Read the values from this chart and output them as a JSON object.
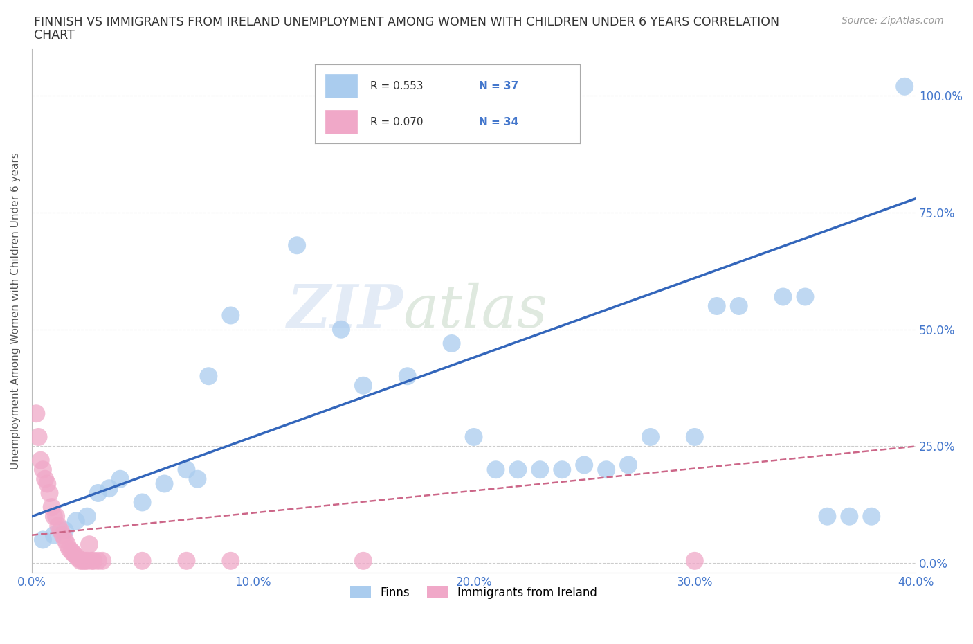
{
  "title_line1": "FINNISH VS IMMIGRANTS FROM IRELAND UNEMPLOYMENT AMONG WOMEN WITH CHILDREN UNDER 6 YEARS CORRELATION",
  "title_line2": "CHART",
  "source": "Source: ZipAtlas.com",
  "ylabel": "Unemployment Among Women with Children Under 6 years",
  "xlim": [
    0.0,
    0.4
  ],
  "ylim": [
    -0.02,
    1.1
  ],
  "xticks": [
    0.0,
    0.1,
    0.2,
    0.3,
    0.4
  ],
  "xtick_labels": [
    "0.0%",
    "10.0%",
    "20.0%",
    "30.0%",
    "40.0%"
  ],
  "yticks": [
    0.0,
    0.25,
    0.5,
    0.75,
    1.0
  ],
  "ytick_labels": [
    "0.0%",
    "25.0%",
    "50.0%",
    "75.0%",
    "100.0%"
  ],
  "background_color": "#ffffff",
  "grid_color": "#cccccc",
  "watermark_zip": "ZIP",
  "watermark_atlas": "atlas",
  "legend_R1": "R = 0.553",
  "legend_N1": "N = 37",
  "legend_R2": "R = 0.070",
  "legend_N2": "N = 34",
  "finns_color": "#aaccee",
  "ireland_color": "#f0a8c8",
  "trendline1_color": "#3366bb",
  "trendline2_color": "#cc6688",
  "finns_scatter": [
    [
      0.005,
      0.05
    ],
    [
      0.01,
      0.06
    ],
    [
      0.015,
      0.07
    ],
    [
      0.02,
      0.09
    ],
    [
      0.025,
      0.1
    ],
    [
      0.03,
      0.15
    ],
    [
      0.035,
      0.16
    ],
    [
      0.04,
      0.18
    ],
    [
      0.05,
      0.13
    ],
    [
      0.06,
      0.17
    ],
    [
      0.07,
      0.2
    ],
    [
      0.075,
      0.18
    ],
    [
      0.08,
      0.4
    ],
    [
      0.09,
      0.53
    ],
    [
      0.12,
      0.68
    ],
    [
      0.14,
      0.5
    ],
    [
      0.15,
      0.38
    ],
    [
      0.17,
      0.4
    ],
    [
      0.19,
      0.47
    ],
    [
      0.2,
      0.27
    ],
    [
      0.21,
      0.2
    ],
    [
      0.22,
      0.2
    ],
    [
      0.23,
      0.2
    ],
    [
      0.24,
      0.2
    ],
    [
      0.25,
      0.21
    ],
    [
      0.26,
      0.2
    ],
    [
      0.27,
      0.21
    ],
    [
      0.28,
      0.27
    ],
    [
      0.3,
      0.27
    ],
    [
      0.31,
      0.55
    ],
    [
      0.32,
      0.55
    ],
    [
      0.34,
      0.57
    ],
    [
      0.35,
      0.57
    ],
    [
      0.36,
      0.1
    ],
    [
      0.37,
      0.1
    ],
    [
      0.38,
      0.1
    ],
    [
      0.395,
      1.02
    ]
  ],
  "ireland_scatter": [
    [
      0.002,
      0.32
    ],
    [
      0.003,
      0.27
    ],
    [
      0.004,
      0.22
    ],
    [
      0.005,
      0.2
    ],
    [
      0.006,
      0.18
    ],
    [
      0.007,
      0.17
    ],
    [
      0.008,
      0.15
    ],
    [
      0.009,
      0.12
    ],
    [
      0.01,
      0.1
    ],
    [
      0.011,
      0.1
    ],
    [
      0.012,
      0.08
    ],
    [
      0.013,
      0.07
    ],
    [
      0.014,
      0.06
    ],
    [
      0.015,
      0.05
    ],
    [
      0.016,
      0.04
    ],
    [
      0.017,
      0.03
    ],
    [
      0.018,
      0.025
    ],
    [
      0.019,
      0.02
    ],
    [
      0.02,
      0.015
    ],
    [
      0.021,
      0.01
    ],
    [
      0.022,
      0.005
    ],
    [
      0.023,
      0.005
    ],
    [
      0.024,
      0.005
    ],
    [
      0.025,
      0.005
    ],
    [
      0.026,
      0.04
    ],
    [
      0.027,
      0.005
    ],
    [
      0.028,
      0.005
    ],
    [
      0.03,
      0.005
    ],
    [
      0.032,
      0.005
    ],
    [
      0.05,
      0.005
    ],
    [
      0.07,
      0.005
    ],
    [
      0.09,
      0.005
    ],
    [
      0.15,
      0.005
    ],
    [
      0.3,
      0.005
    ]
  ],
  "trendline1_x": [
    0.0,
    0.4
  ],
  "trendline1_y": [
    0.1,
    0.78
  ],
  "trendline2_x": [
    0.0,
    0.4
  ],
  "trendline2_y": [
    0.06,
    0.25
  ]
}
